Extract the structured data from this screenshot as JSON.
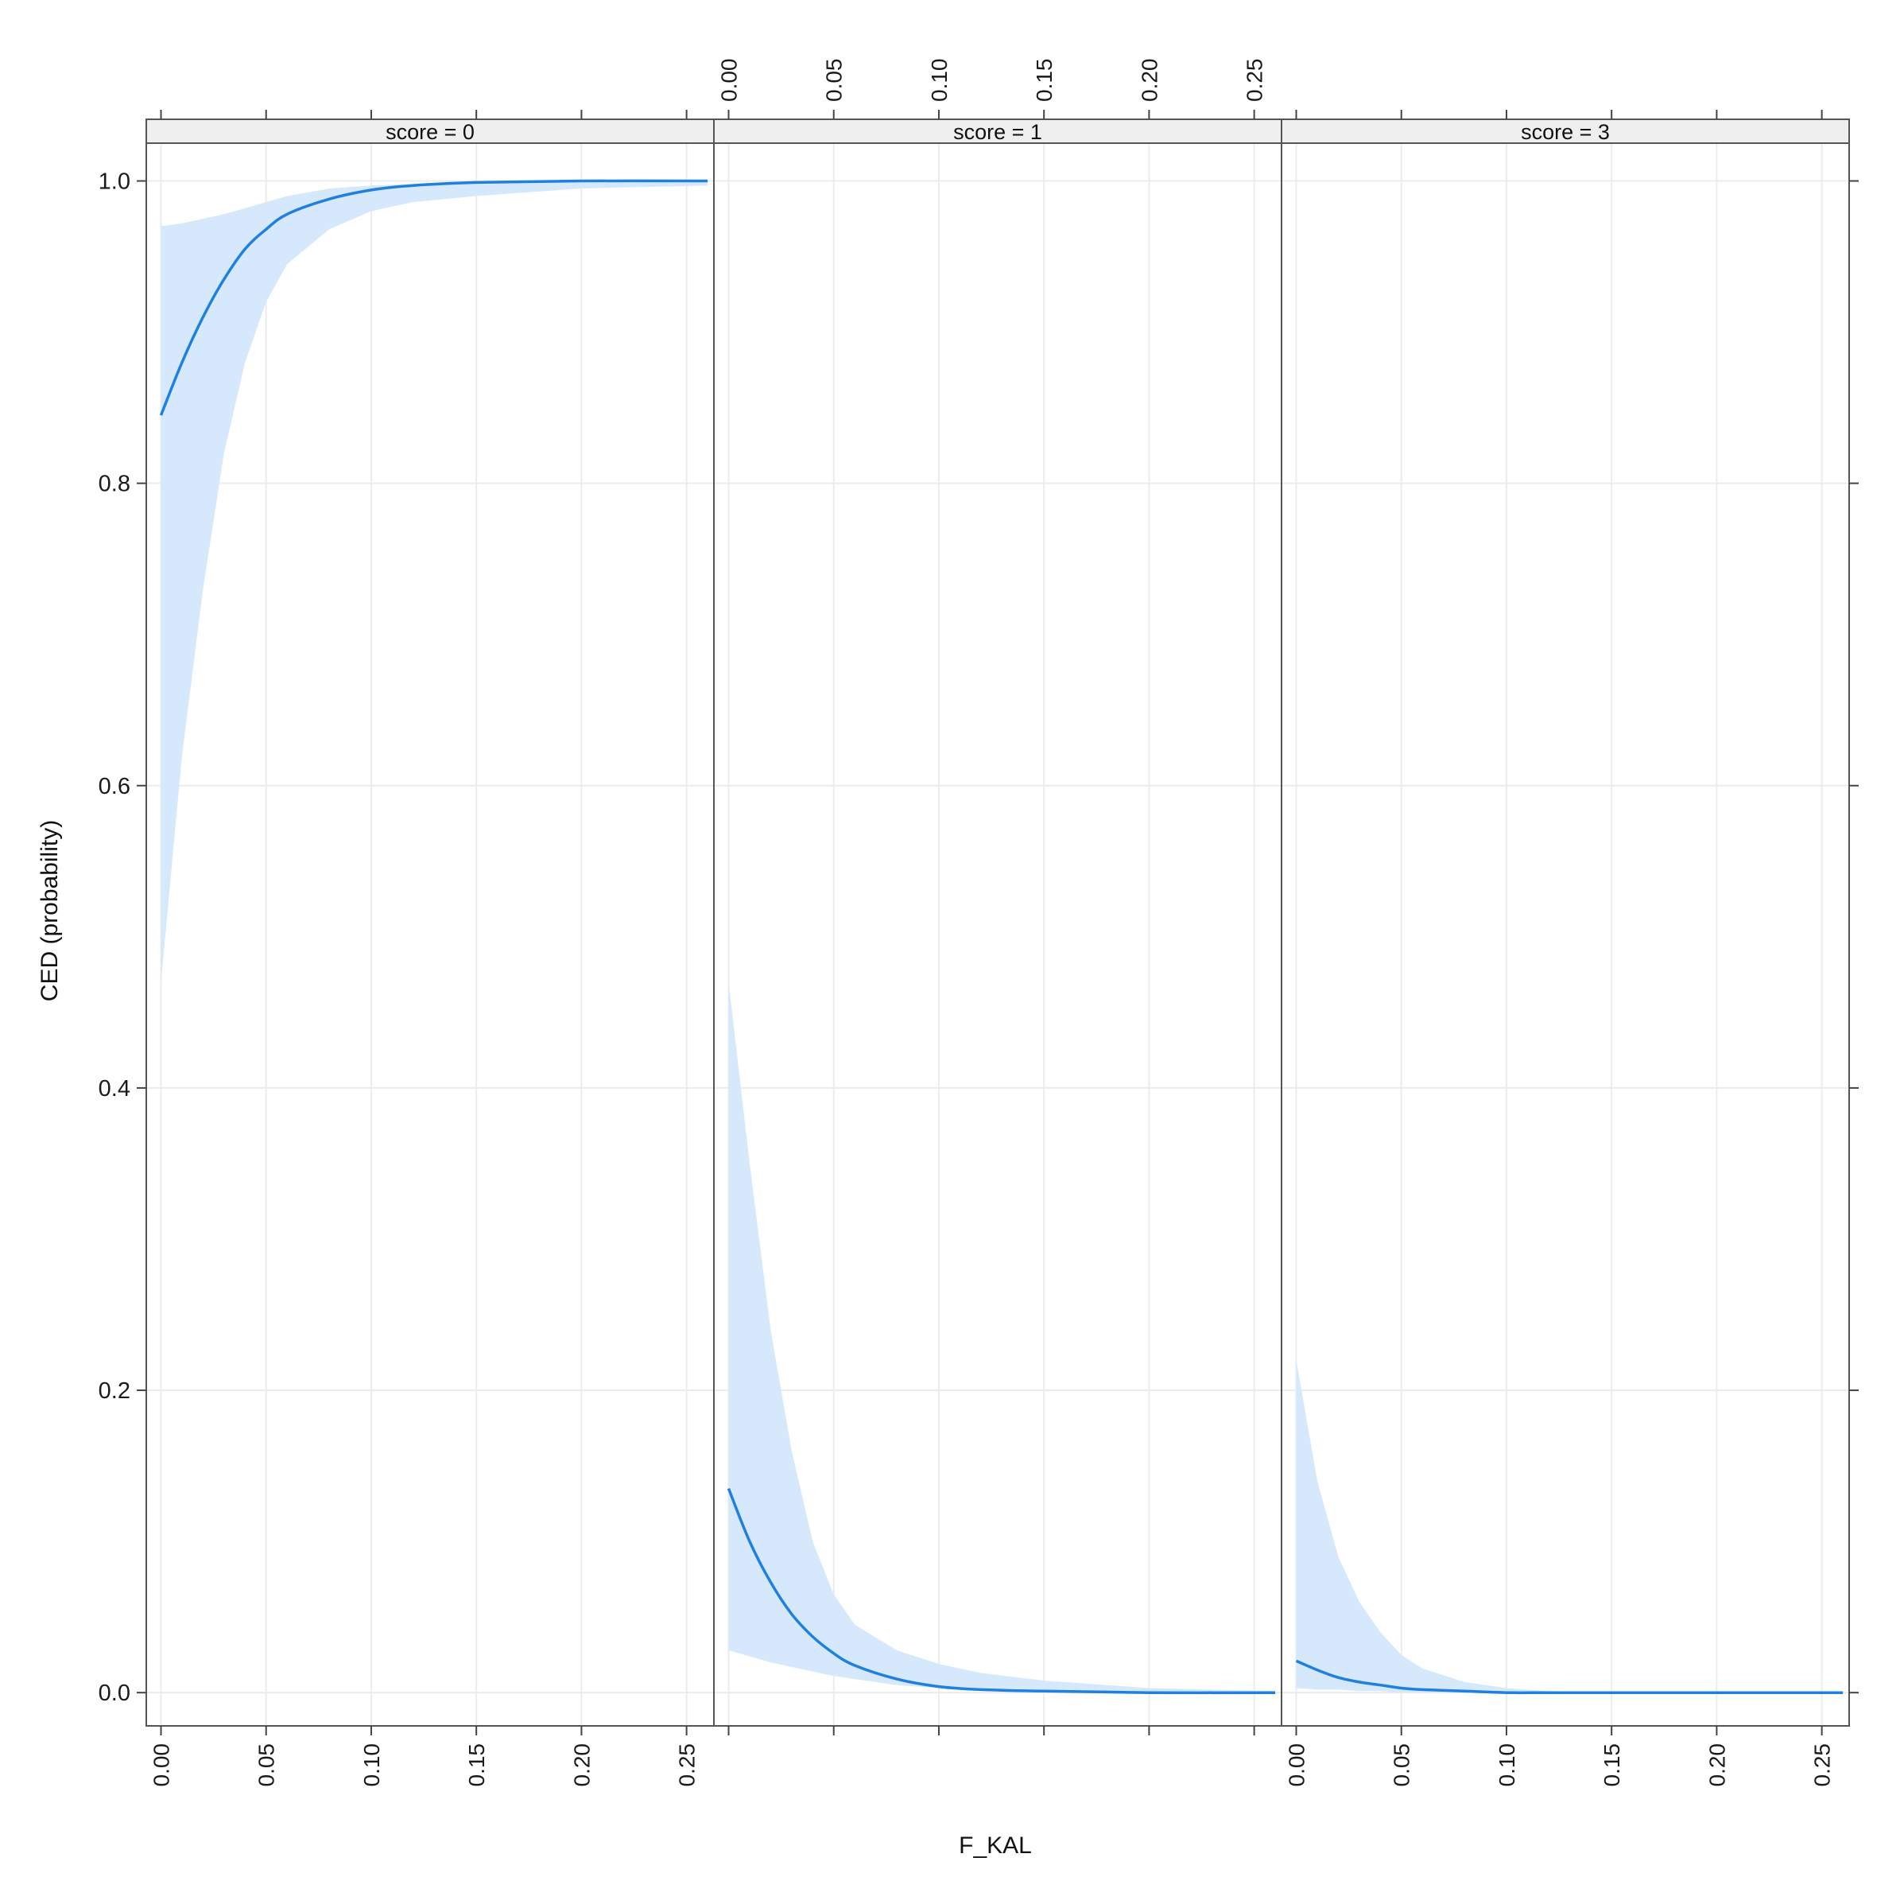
{
  "chart_data": {
    "type": "line",
    "xlabel": "F_KAL",
    "ylabel": "CED (probability)",
    "xlim": [
      -0.007,
      0.263
    ],
    "ylim": [
      -0.022,
      1.025
    ],
    "x_ticks": [
      "0.00",
      "0.05",
      "0.10",
      "0.15",
      "0.20",
      "0.25"
    ],
    "y_ticks": [
      "0.0",
      "0.2",
      "0.4",
      "0.6",
      "0.8",
      "1.0"
    ],
    "grid": true,
    "line_color": "#1f80e0",
    "band_color": "#d6e9fc",
    "panels": [
      {
        "strip_label": "score = 0",
        "x": [
          0.0,
          0.01,
          0.02,
          0.03,
          0.04,
          0.05,
          0.06,
          0.08,
          0.1,
          0.12,
          0.15,
          0.2,
          0.26
        ],
        "fit": [
          0.845,
          0.88,
          0.91,
          0.935,
          0.955,
          0.968,
          0.978,
          0.988,
          0.994,
          0.997,
          0.999,
          1.0,
          1.0
        ],
        "lower": [
          0.47,
          0.62,
          0.73,
          0.82,
          0.88,
          0.92,
          0.945,
          0.968,
          0.98,
          0.986,
          0.99,
          0.995,
          0.997
        ],
        "upper": [
          0.97,
          0.972,
          0.975,
          0.978,
          0.982,
          0.986,
          0.99,
          0.995,
          0.997,
          0.998,
          0.999,
          1.0,
          1.0
        ]
      },
      {
        "strip_label": "score = 1",
        "x": [
          0.0,
          0.01,
          0.02,
          0.03,
          0.04,
          0.05,
          0.06,
          0.08,
          0.1,
          0.12,
          0.15,
          0.2,
          0.26
        ],
        "fit": [
          0.135,
          0.1,
          0.073,
          0.052,
          0.037,
          0.026,
          0.018,
          0.009,
          0.004,
          0.002,
          0.001,
          0.0,
          0.0
        ],
        "lower": [
          0.028,
          0.024,
          0.02,
          0.017,
          0.014,
          0.011,
          0.009,
          0.005,
          0.003,
          0.002,
          0.001,
          0.0,
          0.0
        ],
        "upper": [
          0.47,
          0.35,
          0.24,
          0.16,
          0.1,
          0.065,
          0.045,
          0.028,
          0.019,
          0.013,
          0.008,
          0.003,
          0.001
        ]
      },
      {
        "strip_label": "score = 3",
        "x": [
          0.0,
          0.01,
          0.02,
          0.03,
          0.04,
          0.05,
          0.06,
          0.08,
          0.1,
          0.12,
          0.15,
          0.2,
          0.26
        ],
        "fit": [
          0.021,
          0.015,
          0.01,
          0.007,
          0.005,
          0.003,
          0.002,
          0.001,
          0.0,
          0.0,
          0.0,
          0.0,
          0.0
        ],
        "lower": [
          0.003,
          0.002,
          0.002,
          0.001,
          0.001,
          0.0,
          0.0,
          0.0,
          0.0,
          0.0,
          0.0,
          0.0,
          0.0
        ],
        "upper": [
          0.22,
          0.14,
          0.09,
          0.06,
          0.04,
          0.025,
          0.016,
          0.007,
          0.003,
          0.001,
          0.0,
          0.0,
          0.0
        ]
      }
    ]
  }
}
